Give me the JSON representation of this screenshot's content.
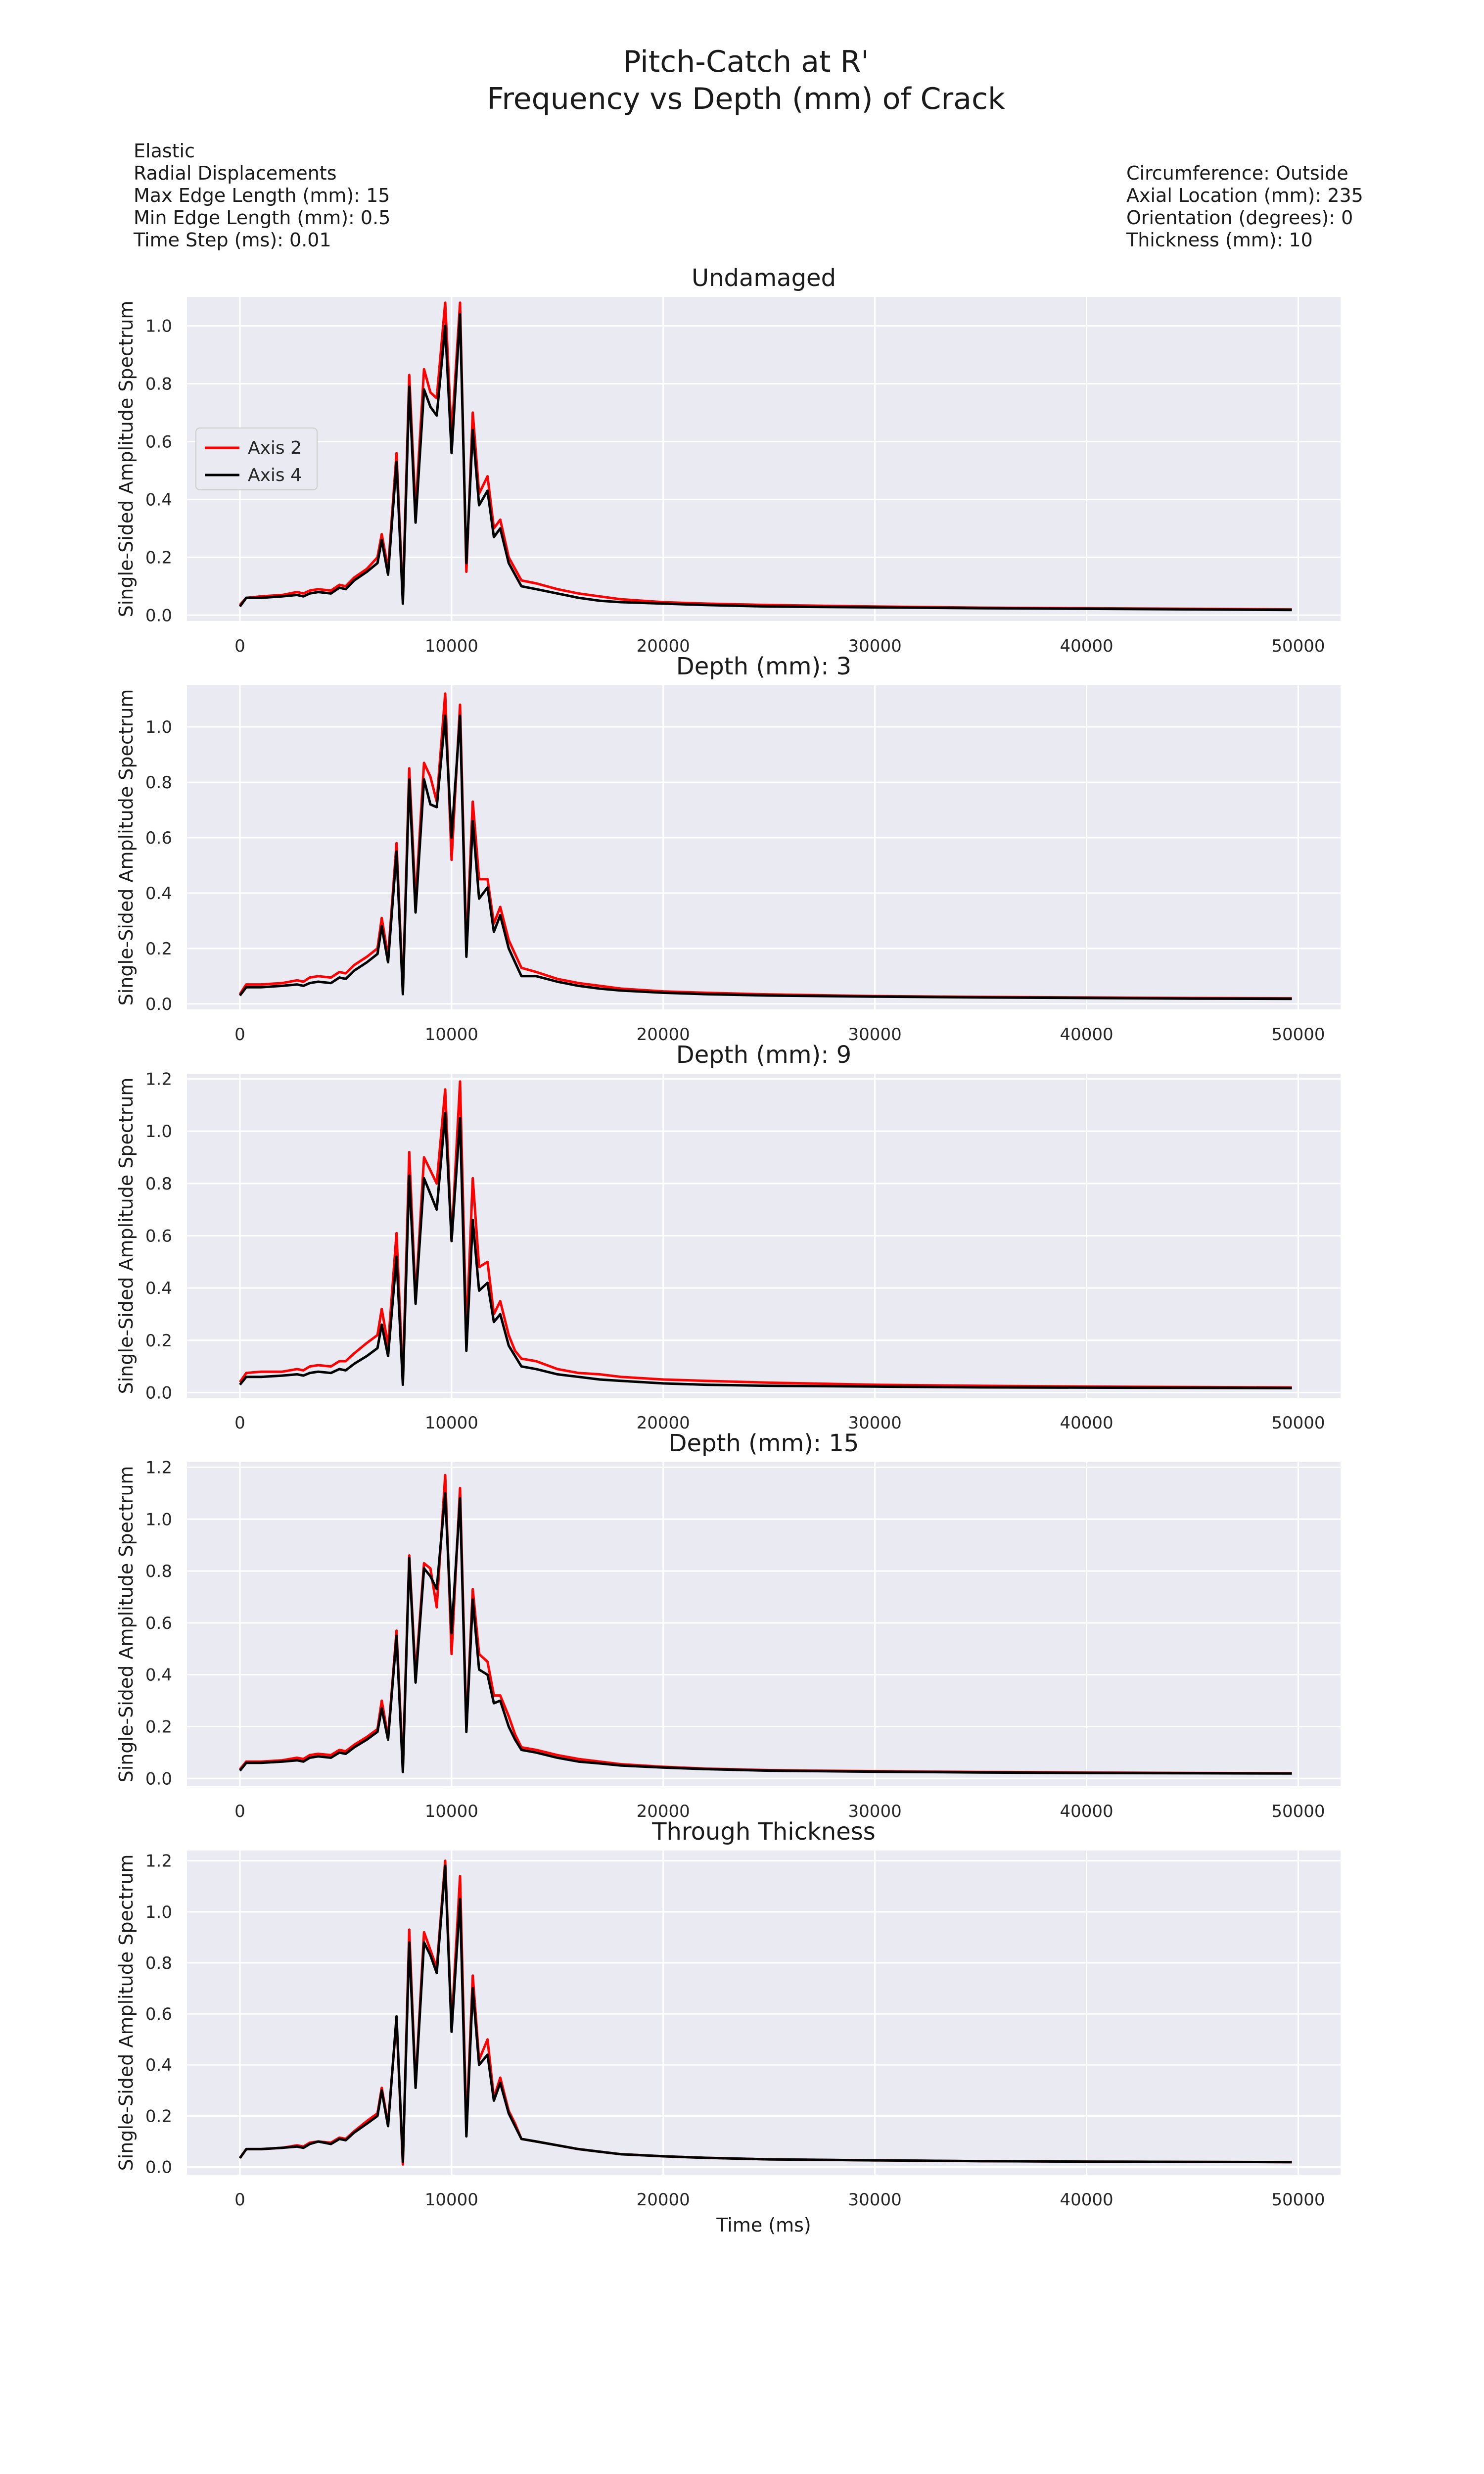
{
  "figure": {
    "title_line1": "Pitch-Catch at R'",
    "title_line2": "Frequency vs Depth (mm) of Crack",
    "left_info": [
      "Elastic",
      "Radial Displacements",
      "Max Edge Length (mm): 15",
      "Min Edge Length (mm): 0.5",
      "Time Step (ms): 0.01"
    ],
    "right_info": [
      "Circumference: Outside",
      "Axial Location (mm): 235",
      "Orientation (degrees): 0",
      "Thickness (mm): 10"
    ]
  },
  "colors": {
    "background": "#ffffff",
    "plot_bg": "#eaeaf2",
    "grid": "#ffffff",
    "axis2": "#ff0000",
    "axis4": "#000000"
  },
  "chart_data": [
    {
      "type": "line",
      "title": "Undamaged",
      "ylabel": "Single-Sided Amplitude Spectrum",
      "xlabel": "",
      "xlim": [
        -2500,
        52000
      ],
      "ylim": [
        -0.02,
        1.1
      ],
      "xticks": [
        0,
        10000,
        20000,
        30000,
        40000,
        50000
      ],
      "yticks": [
        0.0,
        0.2,
        0.4,
        0.6,
        0.8,
        1.0
      ],
      "ytick_labels": [
        "0.0",
        "0.2",
        "0.4",
        "0.6",
        "0.8",
        "1.0"
      ],
      "grid": true,
      "legend": "center-left",
      "x": [
        0,
        300,
        1000,
        2000,
        2700,
        3000,
        3300,
        3700,
        4300,
        4700,
        5000,
        5400,
        6000,
        6500,
        6700,
        7000,
        7400,
        7700,
        8000,
        8300,
        8700,
        9000,
        9300,
        9700,
        10000,
        10400,
        10700,
        11000,
        11300,
        11700,
        12000,
        12300,
        12700,
        13000,
        13300,
        14000,
        15000,
        16000,
        17000,
        18000,
        20000,
        22000,
        25000,
        30000,
        35000,
        40000,
        45000,
        49700
      ],
      "series": [
        {
          "name": "Axis 2",
          "color": "#ff0000",
          "values": [
            0.035,
            0.06,
            0.065,
            0.07,
            0.08,
            0.075,
            0.085,
            0.09,
            0.085,
            0.105,
            0.1,
            0.13,
            0.16,
            0.2,
            0.28,
            0.16,
            0.56,
            0.06,
            0.83,
            0.36,
            0.85,
            0.77,
            0.75,
            1.08,
            0.62,
            1.08,
            0.15,
            0.7,
            0.42,
            0.48,
            0.3,
            0.33,
            0.2,
            0.16,
            0.12,
            0.11,
            0.09,
            0.075,
            0.065,
            0.055,
            0.045,
            0.04,
            0.035,
            0.03,
            0.026,
            0.024,
            0.022,
            0.02
          ]
        },
        {
          "name": "Axis 4",
          "color": "#000000",
          "values": [
            0.03,
            0.06,
            0.06,
            0.065,
            0.07,
            0.065,
            0.075,
            0.08,
            0.075,
            0.095,
            0.09,
            0.12,
            0.15,
            0.18,
            0.26,
            0.14,
            0.53,
            0.04,
            0.79,
            0.32,
            0.78,
            0.72,
            0.69,
            1.0,
            0.56,
            1.04,
            0.18,
            0.64,
            0.38,
            0.43,
            0.27,
            0.3,
            0.18,
            0.14,
            0.1,
            0.09,
            0.075,
            0.06,
            0.05,
            0.045,
            0.04,
            0.035,
            0.03,
            0.027,
            0.024,
            0.022,
            0.02,
            0.018
          ]
        }
      ]
    },
    {
      "type": "line",
      "title": "Depth (mm): 3",
      "ylabel": "Single-Sided Amplitude Spectrum",
      "xlabel": "",
      "xlim": [
        -2500,
        52000
      ],
      "ylim": [
        -0.02,
        1.15
      ],
      "xticks": [
        0,
        10000,
        20000,
        30000,
        40000,
        50000
      ],
      "yticks": [
        0.0,
        0.2,
        0.4,
        0.6,
        0.8,
        1.0
      ],
      "ytick_labels": [
        "0.0",
        "0.2",
        "0.4",
        "0.6",
        "0.8",
        "1.0"
      ],
      "grid": true,
      "x": [
        0,
        300,
        1000,
        2000,
        2700,
        3000,
        3300,
        3700,
        4300,
        4700,
        5000,
        5400,
        6000,
        6500,
        6700,
        7000,
        7400,
        7700,
        8000,
        8300,
        8700,
        9000,
        9300,
        9700,
        10000,
        10400,
        10700,
        11000,
        11300,
        11700,
        12000,
        12300,
        12700,
        13000,
        13300,
        14000,
        15000,
        16000,
        17000,
        18000,
        20000,
        22000,
        25000,
        30000,
        35000,
        40000,
        45000,
        49700
      ],
      "series": [
        {
          "name": "Axis 2",
          "color": "#ff0000",
          "values": [
            0.035,
            0.07,
            0.07,
            0.075,
            0.085,
            0.08,
            0.095,
            0.1,
            0.095,
            0.115,
            0.11,
            0.14,
            0.17,
            0.2,
            0.31,
            0.17,
            0.58,
            0.05,
            0.85,
            0.37,
            0.87,
            0.82,
            0.73,
            1.12,
            0.52,
            1.08,
            0.2,
            0.73,
            0.45,
            0.45,
            0.29,
            0.35,
            0.23,
            0.18,
            0.13,
            0.115,
            0.09,
            0.075,
            0.065,
            0.055,
            0.045,
            0.04,
            0.034,
            0.028,
            0.025,
            0.023,
            0.021,
            0.02
          ]
        },
        {
          "name": "Axis 4",
          "color": "#000000",
          "values": [
            0.03,
            0.06,
            0.06,
            0.065,
            0.07,
            0.065,
            0.075,
            0.08,
            0.075,
            0.095,
            0.09,
            0.12,
            0.15,
            0.18,
            0.28,
            0.15,
            0.55,
            0.035,
            0.81,
            0.33,
            0.81,
            0.72,
            0.71,
            1.04,
            0.6,
            1.04,
            0.17,
            0.66,
            0.38,
            0.42,
            0.26,
            0.32,
            0.2,
            0.15,
            0.1,
            0.1,
            0.08,
            0.065,
            0.055,
            0.048,
            0.04,
            0.035,
            0.03,
            0.026,
            0.023,
            0.021,
            0.019,
            0.018
          ]
        }
      ]
    },
    {
      "type": "line",
      "title": "Depth (mm): 9",
      "ylabel": "Single-Sided Amplitude Spectrum",
      "xlabel": "",
      "xlim": [
        -2500,
        52000
      ],
      "ylim": [
        -0.02,
        1.22
      ],
      "xticks": [
        0,
        10000,
        20000,
        30000,
        40000,
        50000
      ],
      "yticks": [
        0.0,
        0.2,
        0.4,
        0.6,
        0.8,
        1.0,
        1.2
      ],
      "ytick_labels": [
        "0.0",
        "0.2",
        "0.4",
        "0.6",
        "0.8",
        "1.0",
        "1.2"
      ],
      "grid": true,
      "x": [
        0,
        300,
        1000,
        2000,
        2700,
        3000,
        3300,
        3700,
        4300,
        4700,
        5000,
        5400,
        6000,
        6500,
        6700,
        7000,
        7400,
        7700,
        8000,
        8300,
        8700,
        9000,
        9300,
        9700,
        10000,
        10400,
        10700,
        11000,
        11300,
        11700,
        12000,
        12300,
        12700,
        13000,
        13300,
        14000,
        15000,
        16000,
        17000,
        18000,
        20000,
        22000,
        25000,
        30000,
        35000,
        40000,
        45000,
        49700
      ],
      "series": [
        {
          "name": "Axis 2",
          "color": "#ff0000",
          "values": [
            0.04,
            0.075,
            0.08,
            0.08,
            0.09,
            0.085,
            0.1,
            0.105,
            0.1,
            0.12,
            0.12,
            0.15,
            0.19,
            0.22,
            0.32,
            0.18,
            0.61,
            0.05,
            0.92,
            0.36,
            0.9,
            0.85,
            0.8,
            1.16,
            0.58,
            1.19,
            0.22,
            0.82,
            0.48,
            0.5,
            0.3,
            0.35,
            0.22,
            0.16,
            0.13,
            0.12,
            0.09,
            0.075,
            0.07,
            0.06,
            0.05,
            0.045,
            0.038,
            0.03,
            0.026,
            0.023,
            0.021,
            0.02
          ]
        },
        {
          "name": "Axis 4",
          "color": "#000000",
          "values": [
            0.03,
            0.06,
            0.06,
            0.065,
            0.07,
            0.065,
            0.075,
            0.08,
            0.075,
            0.09,
            0.085,
            0.11,
            0.14,
            0.17,
            0.26,
            0.14,
            0.52,
            0.03,
            0.83,
            0.34,
            0.82,
            0.76,
            0.7,
            1.07,
            0.58,
            1.05,
            0.16,
            0.66,
            0.39,
            0.42,
            0.27,
            0.3,
            0.18,
            0.14,
            0.1,
            0.09,
            0.07,
            0.06,
            0.05,
            0.045,
            0.035,
            0.03,
            0.026,
            0.023,
            0.02,
            0.019,
            0.018,
            0.017
          ]
        }
      ]
    },
    {
      "type": "line",
      "title": "Depth (mm): 15",
      "ylabel": "Single-Sided Amplitude Spectrum",
      "xlabel": "",
      "xlim": [
        -2500,
        52000
      ],
      "ylim": [
        -0.03,
        1.22
      ],
      "xticks": [
        0,
        10000,
        20000,
        30000,
        40000,
        50000
      ],
      "yticks": [
        0.0,
        0.2,
        0.4,
        0.6,
        0.8,
        1.0,
        1.2
      ],
      "ytick_labels": [
        "0.0",
        "0.2",
        "0.4",
        "0.6",
        "0.8",
        "1.0",
        "1.2"
      ],
      "grid": true,
      "x": [
        0,
        300,
        1000,
        2000,
        2700,
        3000,
        3300,
        3700,
        4300,
        4700,
        5000,
        5400,
        6000,
        6500,
        6700,
        7000,
        7400,
        7700,
        8000,
        8300,
        8700,
        9000,
        9300,
        9700,
        10000,
        10400,
        10700,
        11000,
        11300,
        11700,
        12000,
        12300,
        12700,
        13000,
        13300,
        14000,
        15000,
        16000,
        17000,
        18000,
        20000,
        22000,
        25000,
        30000,
        35000,
        40000,
        45000,
        49700
      ],
      "series": [
        {
          "name": "Axis 2",
          "color": "#ff0000",
          "values": [
            0.035,
            0.065,
            0.065,
            0.07,
            0.08,
            0.075,
            0.09,
            0.095,
            0.09,
            0.11,
            0.105,
            0.13,
            0.16,
            0.19,
            0.3,
            0.16,
            0.57,
            0.05,
            0.86,
            0.4,
            0.83,
            0.81,
            0.66,
            1.17,
            0.48,
            1.12,
            0.2,
            0.73,
            0.48,
            0.45,
            0.32,
            0.32,
            0.24,
            0.17,
            0.12,
            0.11,
            0.09,
            0.075,
            0.065,
            0.055,
            0.045,
            0.038,
            0.032,
            0.028,
            0.025,
            0.023,
            0.021,
            0.02
          ]
        },
        {
          "name": "Axis 4",
          "color": "#000000",
          "values": [
            0.03,
            0.06,
            0.06,
            0.065,
            0.07,
            0.065,
            0.08,
            0.085,
            0.08,
            0.1,
            0.095,
            0.12,
            0.15,
            0.18,
            0.27,
            0.15,
            0.55,
            0.025,
            0.85,
            0.37,
            0.81,
            0.78,
            0.73,
            1.1,
            0.56,
            1.08,
            0.18,
            0.69,
            0.42,
            0.4,
            0.29,
            0.3,
            0.2,
            0.15,
            0.11,
            0.1,
            0.08,
            0.065,
            0.058,
            0.05,
            0.042,
            0.036,
            0.03,
            0.026,
            0.023,
            0.021,
            0.02,
            0.019
          ]
        }
      ]
    },
    {
      "type": "line",
      "title": "Through Thickness",
      "ylabel": "Single-Sided Amplitude Spectrum",
      "xlabel": "Time (ms)",
      "xlim": [
        -2500,
        52000
      ],
      "ylim": [
        -0.03,
        1.24
      ],
      "xticks": [
        0,
        10000,
        20000,
        30000,
        40000,
        50000
      ],
      "yticks": [
        0.0,
        0.2,
        0.4,
        0.6,
        0.8,
        1.0,
        1.2
      ],
      "ytick_labels": [
        "0.0",
        "0.2",
        "0.4",
        "0.6",
        "0.8",
        "1.0",
        "1.2"
      ],
      "grid": true,
      "x": [
        0,
        300,
        1000,
        2000,
        2700,
        3000,
        3300,
        3700,
        4300,
        4700,
        5000,
        5400,
        6000,
        6500,
        6700,
        7000,
        7400,
        7700,
        8000,
        8300,
        8700,
        9000,
        9300,
        9700,
        10000,
        10400,
        10700,
        11000,
        11300,
        11700,
        12000,
        12300,
        12700,
        13000,
        13300,
        14000,
        15000,
        16000,
        17000,
        18000,
        20000,
        22000,
        25000,
        30000,
        35000,
        40000,
        45000,
        49700
      ],
      "series": [
        {
          "name": "Axis 2",
          "color": "#ff0000",
          "values": [
            0.035,
            0.07,
            0.07,
            0.075,
            0.085,
            0.08,
            0.095,
            0.1,
            0.095,
            0.115,
            0.11,
            0.14,
            0.18,
            0.21,
            0.31,
            0.17,
            0.58,
            0.01,
            0.93,
            0.32,
            0.92,
            0.85,
            0.78,
            1.2,
            0.55,
            1.14,
            0.15,
            0.75,
            0.42,
            0.5,
            0.27,
            0.35,
            0.22,
            0.17,
            0.11,
            0.1,
            0.085,
            0.07,
            0.06,
            0.05,
            0.042,
            0.036,
            0.03,
            0.026,
            0.023,
            0.021,
            0.02,
            0.019
          ]
        },
        {
          "name": "Axis 4",
          "color": "#000000",
          "values": [
            0.035,
            0.07,
            0.07,
            0.075,
            0.08,
            0.075,
            0.09,
            0.1,
            0.09,
            0.11,
            0.105,
            0.135,
            0.17,
            0.2,
            0.3,
            0.16,
            0.59,
            0.02,
            0.88,
            0.31,
            0.88,
            0.83,
            0.76,
            1.18,
            0.53,
            1.05,
            0.12,
            0.7,
            0.4,
            0.44,
            0.26,
            0.33,
            0.21,
            0.16,
            0.11,
            0.1,
            0.085,
            0.07,
            0.06,
            0.05,
            0.042,
            0.036,
            0.03,
            0.026,
            0.023,
            0.021,
            0.02,
            0.019
          ]
        }
      ]
    }
  ]
}
